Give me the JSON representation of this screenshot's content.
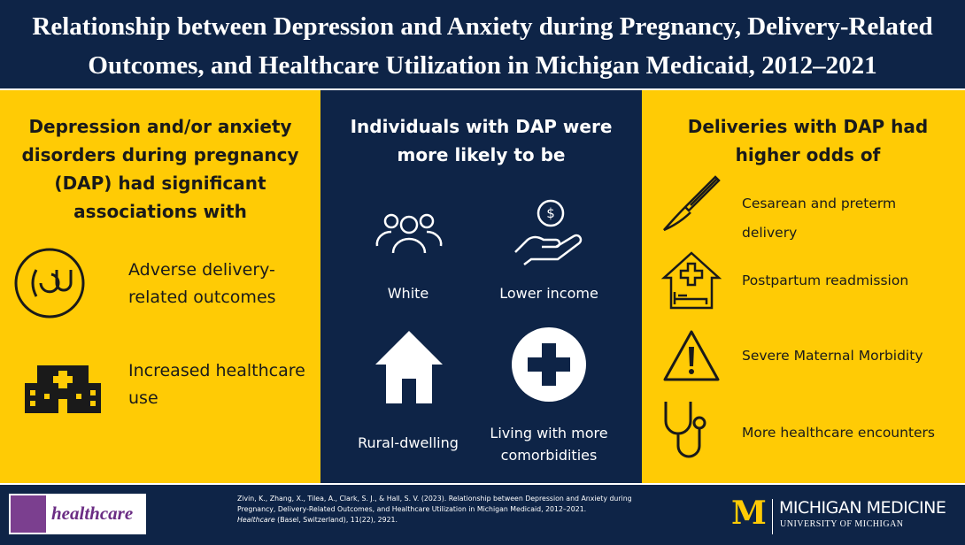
{
  "title": "Relationship between Depression and Anxiety during Pregnancy, Delivery-Related Outcomes, and Healthcare Utilization in Michigan Medicaid, 2012–2021",
  "left": {
    "heading": "Depression and/or anxiety disorders during pregnancy (DAP) had significant associations with",
    "items": [
      "Adverse delivery-related outcomes",
      "Increased healthcare use"
    ]
  },
  "middle": {
    "heading": "Individuals with DAP were more likely to be",
    "items": [
      "White",
      "Lower income",
      "Rural-dwelling",
      "Living with more comorbidities"
    ]
  },
  "right": {
    "heading": "Deliveries with DAP had higher odds of",
    "items": [
      "Cesarean and preterm delivery",
      "Postpartum readmission",
      "Severe Maternal Morbidity",
      "More healthcare encounters"
    ]
  },
  "footer": {
    "journal": "healthcare",
    "citation": "Zivin, K., Zhang, X., Tilea, A., Clark, S. J., & Hall, S. V. (2023). Relationship between Depression and Anxiety during Pregnancy, Delivery-Related Outcomes, and Healthcare Utilization in Michigan Medicaid, 2012–2021.",
    "citation_journal": "Healthcare",
    "citation_source": "(Basel, Switzerland), 11(22), 2921.",
    "logo_letter": "M",
    "logo_name": "MICHIGAN MEDICINE",
    "logo_sub": "UNIVERSITY OF MICHIGAN"
  }
}
